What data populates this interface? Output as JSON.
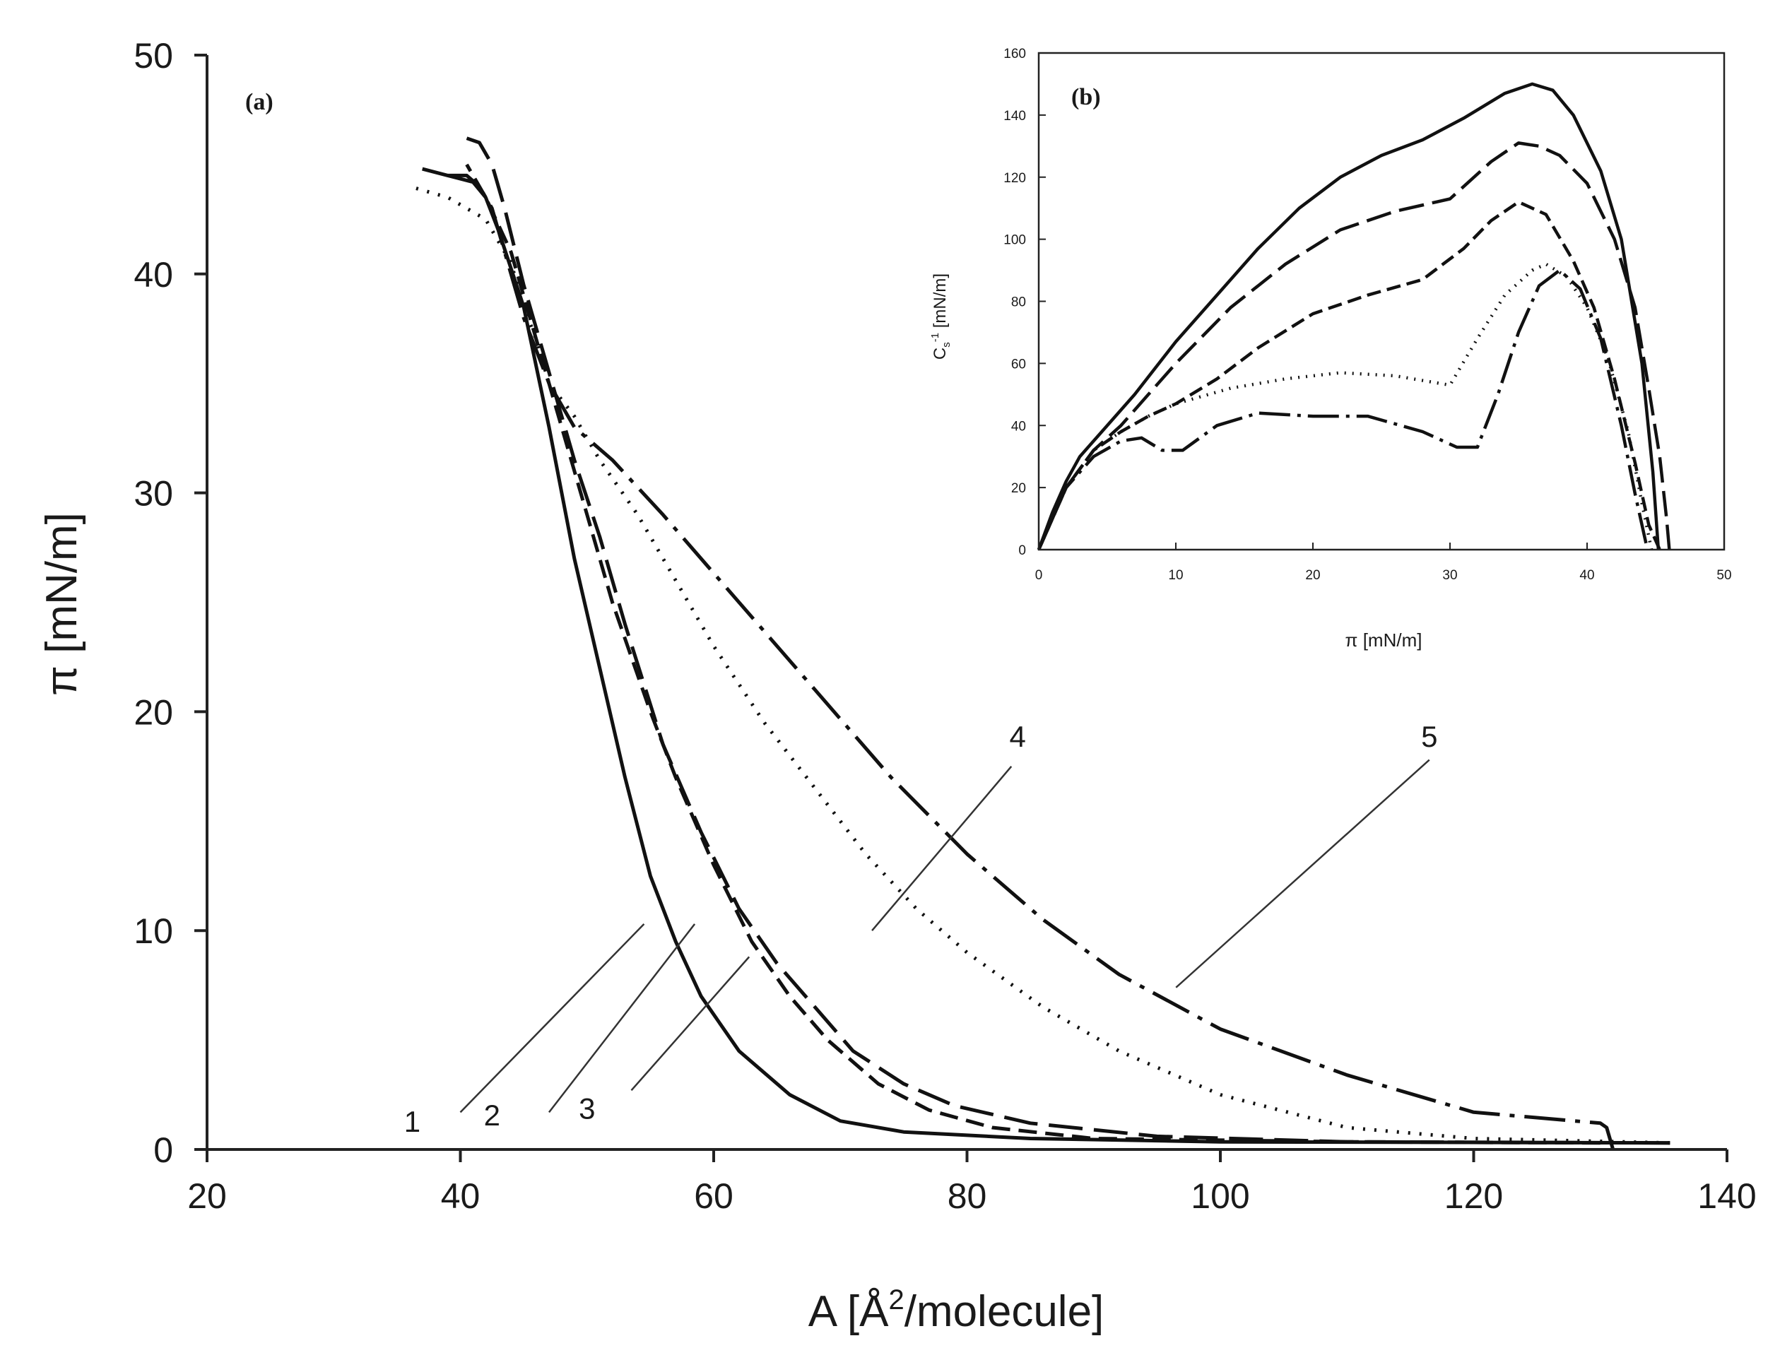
{
  "chart_data": [
    {
      "id": "a",
      "type": "line",
      "panel_label": "(a)",
      "xlabel_main": "A [Å",
      "xlabel_sup": "2",
      "xlabel_tail": "/molecule]",
      "ylabel": "π [mN/m]",
      "xlim": [
        20,
        140
      ],
      "ylim": [
        0,
        50
      ],
      "xticks": [
        "20",
        "40",
        "60",
        "80",
        "100",
        "120",
        "140"
      ],
      "yticks": [
        "0",
        "10",
        "20",
        "30",
        "40",
        "50"
      ],
      "series": [
        {
          "name": "1",
          "style": "solid",
          "x": [
            135.5,
            100,
            85,
            75,
            70,
            66,
            62,
            59,
            57,
            55,
            53,
            51,
            49,
            47,
            45,
            43,
            42,
            41,
            39,
            37
          ],
          "y": [
            0.3,
            0.35,
            0.5,
            0.8,
            1.3,
            2.5,
            4.5,
            7,
            9.5,
            12.5,
            17,
            22,
            27,
            33,
            38.5,
            42,
            43.5,
            44.2,
            44.5,
            44.8
          ]
        },
        {
          "name": "2",
          "style": "dash",
          "x": [
            130,
            110,
            90,
            82,
            77,
            73,
            69,
            66,
            63,
            60,
            57,
            55,
            52,
            50,
            48,
            46,
            44,
            42,
            40.5
          ],
          "y": [
            0.3,
            0.35,
            0.5,
            1,
            1.8,
            3,
            5,
            7,
            9.5,
            13,
            17,
            20,
            25,
            29,
            33,
            37,
            41,
            43.5,
            45
          ]
        },
        {
          "name": "3",
          "style": "longdash",
          "x": [
            135.5,
            110,
            95,
            85,
            79,
            75,
            71,
            68,
            65,
            62,
            59,
            56,
            53,
            51,
            49,
            47,
            45,
            43.5,
            42.5,
            41.5,
            40.5
          ],
          "y": [
            0.3,
            0.35,
            0.6,
            1.2,
            2,
            3,
            4.5,
            6.5,
            8.5,
            11,
            14.5,
            18.5,
            24,
            28,
            31.5,
            35.5,
            39.5,
            43,
            45,
            46,
            46.2
          ]
        },
        {
          "name": "4",
          "style": "dot",
          "x": [
            135.5,
            120,
            110,
            100,
            92,
            86,
            80,
            76,
            72,
            68,
            64,
            60,
            57,
            54,
            51,
            49,
            47,
            46,
            45,
            44,
            42,
            39,
            36
          ],
          "y": [
            0.3,
            0.5,
            1,
            2.5,
            4.5,
            6.5,
            9,
            11,
            13.5,
            16.5,
            19.5,
            23,
            26,
            29,
            31.5,
            33.5,
            35,
            37,
            38.5,
            40.5,
            42.5,
            43.5,
            44
          ]
        },
        {
          "name": "5",
          "style": "dashdot",
          "x": [
            131,
            130.5,
            130,
            120,
            110,
            100,
            92,
            86,
            80,
            74,
            68,
            62,
            56,
            52,
            49,
            47,
            45,
            43.5,
            42.5,
            41.5,
            40.5,
            39
          ],
          "y": [
            0,
            1,
            1.2,
            1.7,
            3.4,
            5.5,
            8,
            10.5,
            13.5,
            17,
            21,
            25,
            29,
            31.5,
            33,
            35,
            38,
            41,
            43,
            44,
            44.5,
            44.5
          ]
        }
      ],
      "annotations": [
        "1",
        "2",
        "3",
        "4",
        "5"
      ]
    },
    {
      "id": "b",
      "type": "line",
      "panel_label": "(b)",
      "xlabel": "π [mN/m]",
      "ylabel_main": "C",
      "ylabel_sub": "s",
      "ylabel_sup": "-1",
      "ylabel_tail": " [mN/m]",
      "xlim": [
        0,
        50
      ],
      "ylim": [
        0,
        160
      ],
      "xticks": [
        "0",
        "10",
        "20",
        "30",
        "40",
        "50"
      ],
      "yticks": [
        "0",
        "20",
        "40",
        "60",
        "80",
        "100",
        "120",
        "140",
        "160"
      ],
      "series": [
        {
          "name": "1",
          "style": "solid",
          "x": [
            0,
            1,
            2,
            3,
            5,
            7,
            10,
            13,
            16,
            19,
            22,
            25,
            28,
            31,
            34,
            36,
            37.5,
            39,
            41,
            42.5,
            44,
            44.8,
            45.2
          ],
          "y": [
            0,
            12,
            22,
            30,
            40,
            50,
            67,
            82,
            97,
            110,
            120,
            127,
            132,
            139,
            147,
            150,
            148,
            140,
            122,
            100,
            60,
            25,
            0
          ]
        },
        {
          "name": "2",
          "style": "dash",
          "x": [
            0,
            2,
            4,
            6,
            8,
            10,
            13,
            16,
            20,
            24,
            28,
            31,
            33,
            35,
            37,
            39,
            40.5,
            42,
            43.5,
            44.5,
            45.3
          ],
          "y": [
            0,
            20,
            32,
            38,
            43,
            47,
            55,
            65,
            76,
            82,
            87,
            97,
            106,
            112,
            108,
            93,
            78,
            55,
            28,
            8,
            0
          ]
        },
        {
          "name": "3",
          "style": "longdash",
          "x": [
            0,
            2,
            4,
            6,
            8,
            10,
            14,
            18,
            22,
            26,
            30,
            33,
            35,
            36.5,
            38,
            40,
            42,
            43.5,
            44.5,
            45.3,
            45.8,
            46
          ],
          "y": [
            0,
            20,
            32,
            40,
            50,
            60,
            78,
            92,
            103,
            109,
            113,
            125,
            131,
            130,
            127,
            118,
            100,
            78,
            52,
            30,
            10,
            0
          ]
        },
        {
          "name": "4",
          "style": "dot",
          "x": [
            0,
            2,
            4,
            6,
            8,
            10,
            14,
            18,
            22,
            26,
            30,
            32,
            34,
            36,
            37,
            38.5,
            40,
            41.5,
            43,
            44,
            44.7
          ],
          "y": [
            0,
            20,
            32,
            38,
            43,
            47,
            52,
            55,
            57,
            56,
            53,
            68,
            82,
            90,
            92,
            88,
            78,
            62,
            38,
            15,
            0
          ]
        },
        {
          "name": "5",
          "style": "dashdot",
          "x": [
            0,
            2,
            4,
            6,
            7.5,
            9,
            10.5,
            13,
            16,
            20,
            24,
            28,
            30.5,
            32,
            33.5,
            35,
            36.5,
            38,
            39.5,
            41,
            42.5,
            43.5,
            44.4
          ],
          "y": [
            0,
            20,
            30,
            35,
            36,
            32,
            32,
            40,
            44,
            43,
            43,
            38,
            33,
            33,
            50,
            70,
            85,
            90,
            84,
            68,
            40,
            18,
            0
          ]
        }
      ]
    }
  ]
}
